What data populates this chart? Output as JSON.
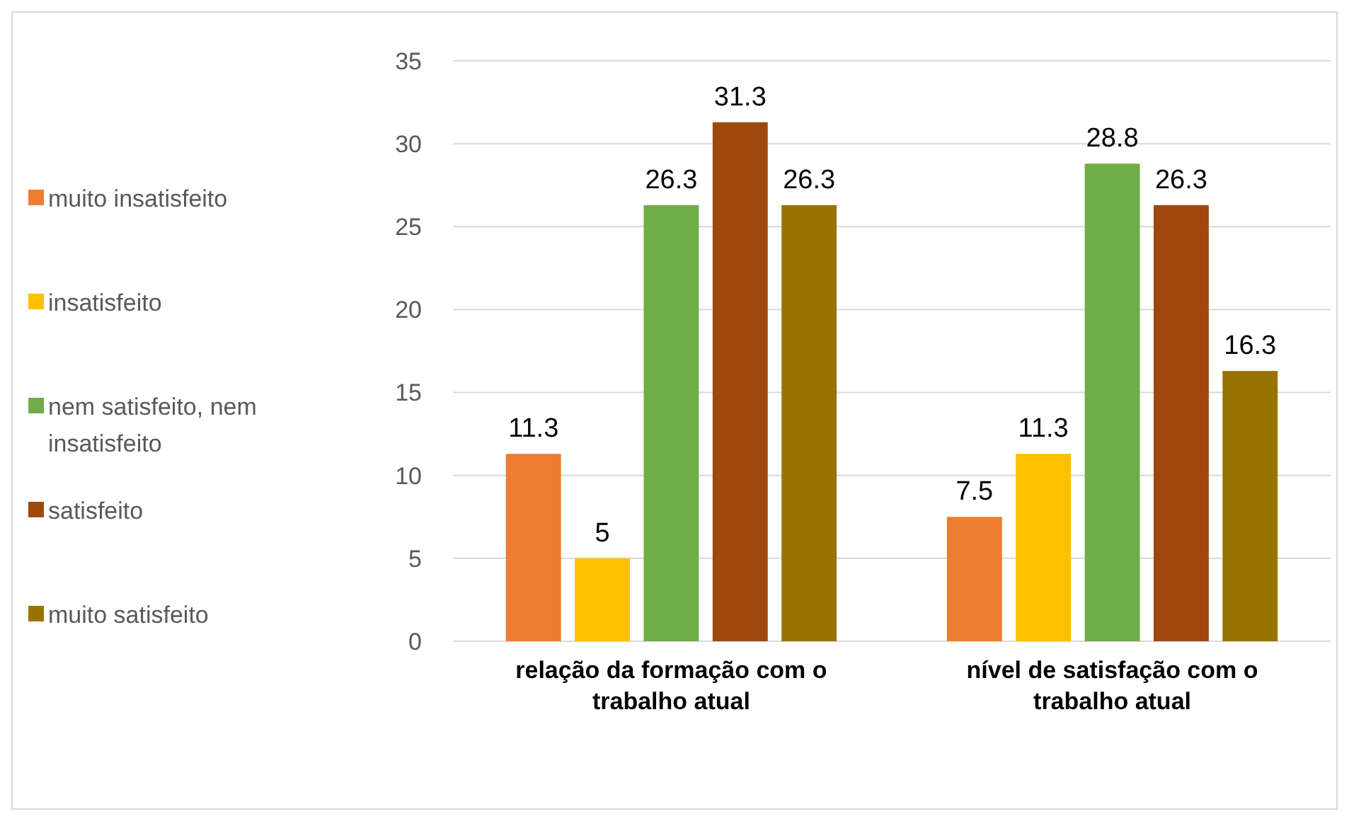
{
  "chart_data": {
    "type": "bar",
    "categories": [
      "relação da formação com o trabalho atual",
      "nível de satisfação com o trabalho atual"
    ],
    "series": [
      {
        "name": "muito insatisfeito",
        "color": "#ed7d31",
        "values": [
          11.3,
          7.5
        ]
      },
      {
        "name": "insatisfeito",
        "color": "#ffc000",
        "values": [
          5,
          11.3
        ]
      },
      {
        "name": "nem satisfeito, nem insatisfeito",
        "color": "#70ad47",
        "values": [
          26.3,
          28.8
        ]
      },
      {
        "name": "satisfeito",
        "color": "#9e480e",
        "values": [
          31.3,
          26.3
        ]
      },
      {
        "name": "muito satisfeito",
        "color": "#997300",
        "values": [
          26.3,
          16.3
        ]
      }
    ],
    "ylim": [
      0,
      35
    ],
    "yticks": [
      0,
      5,
      10,
      15,
      20,
      25,
      30,
      35
    ],
    "grid": "y",
    "legend": "left",
    "data_labels": true
  }
}
